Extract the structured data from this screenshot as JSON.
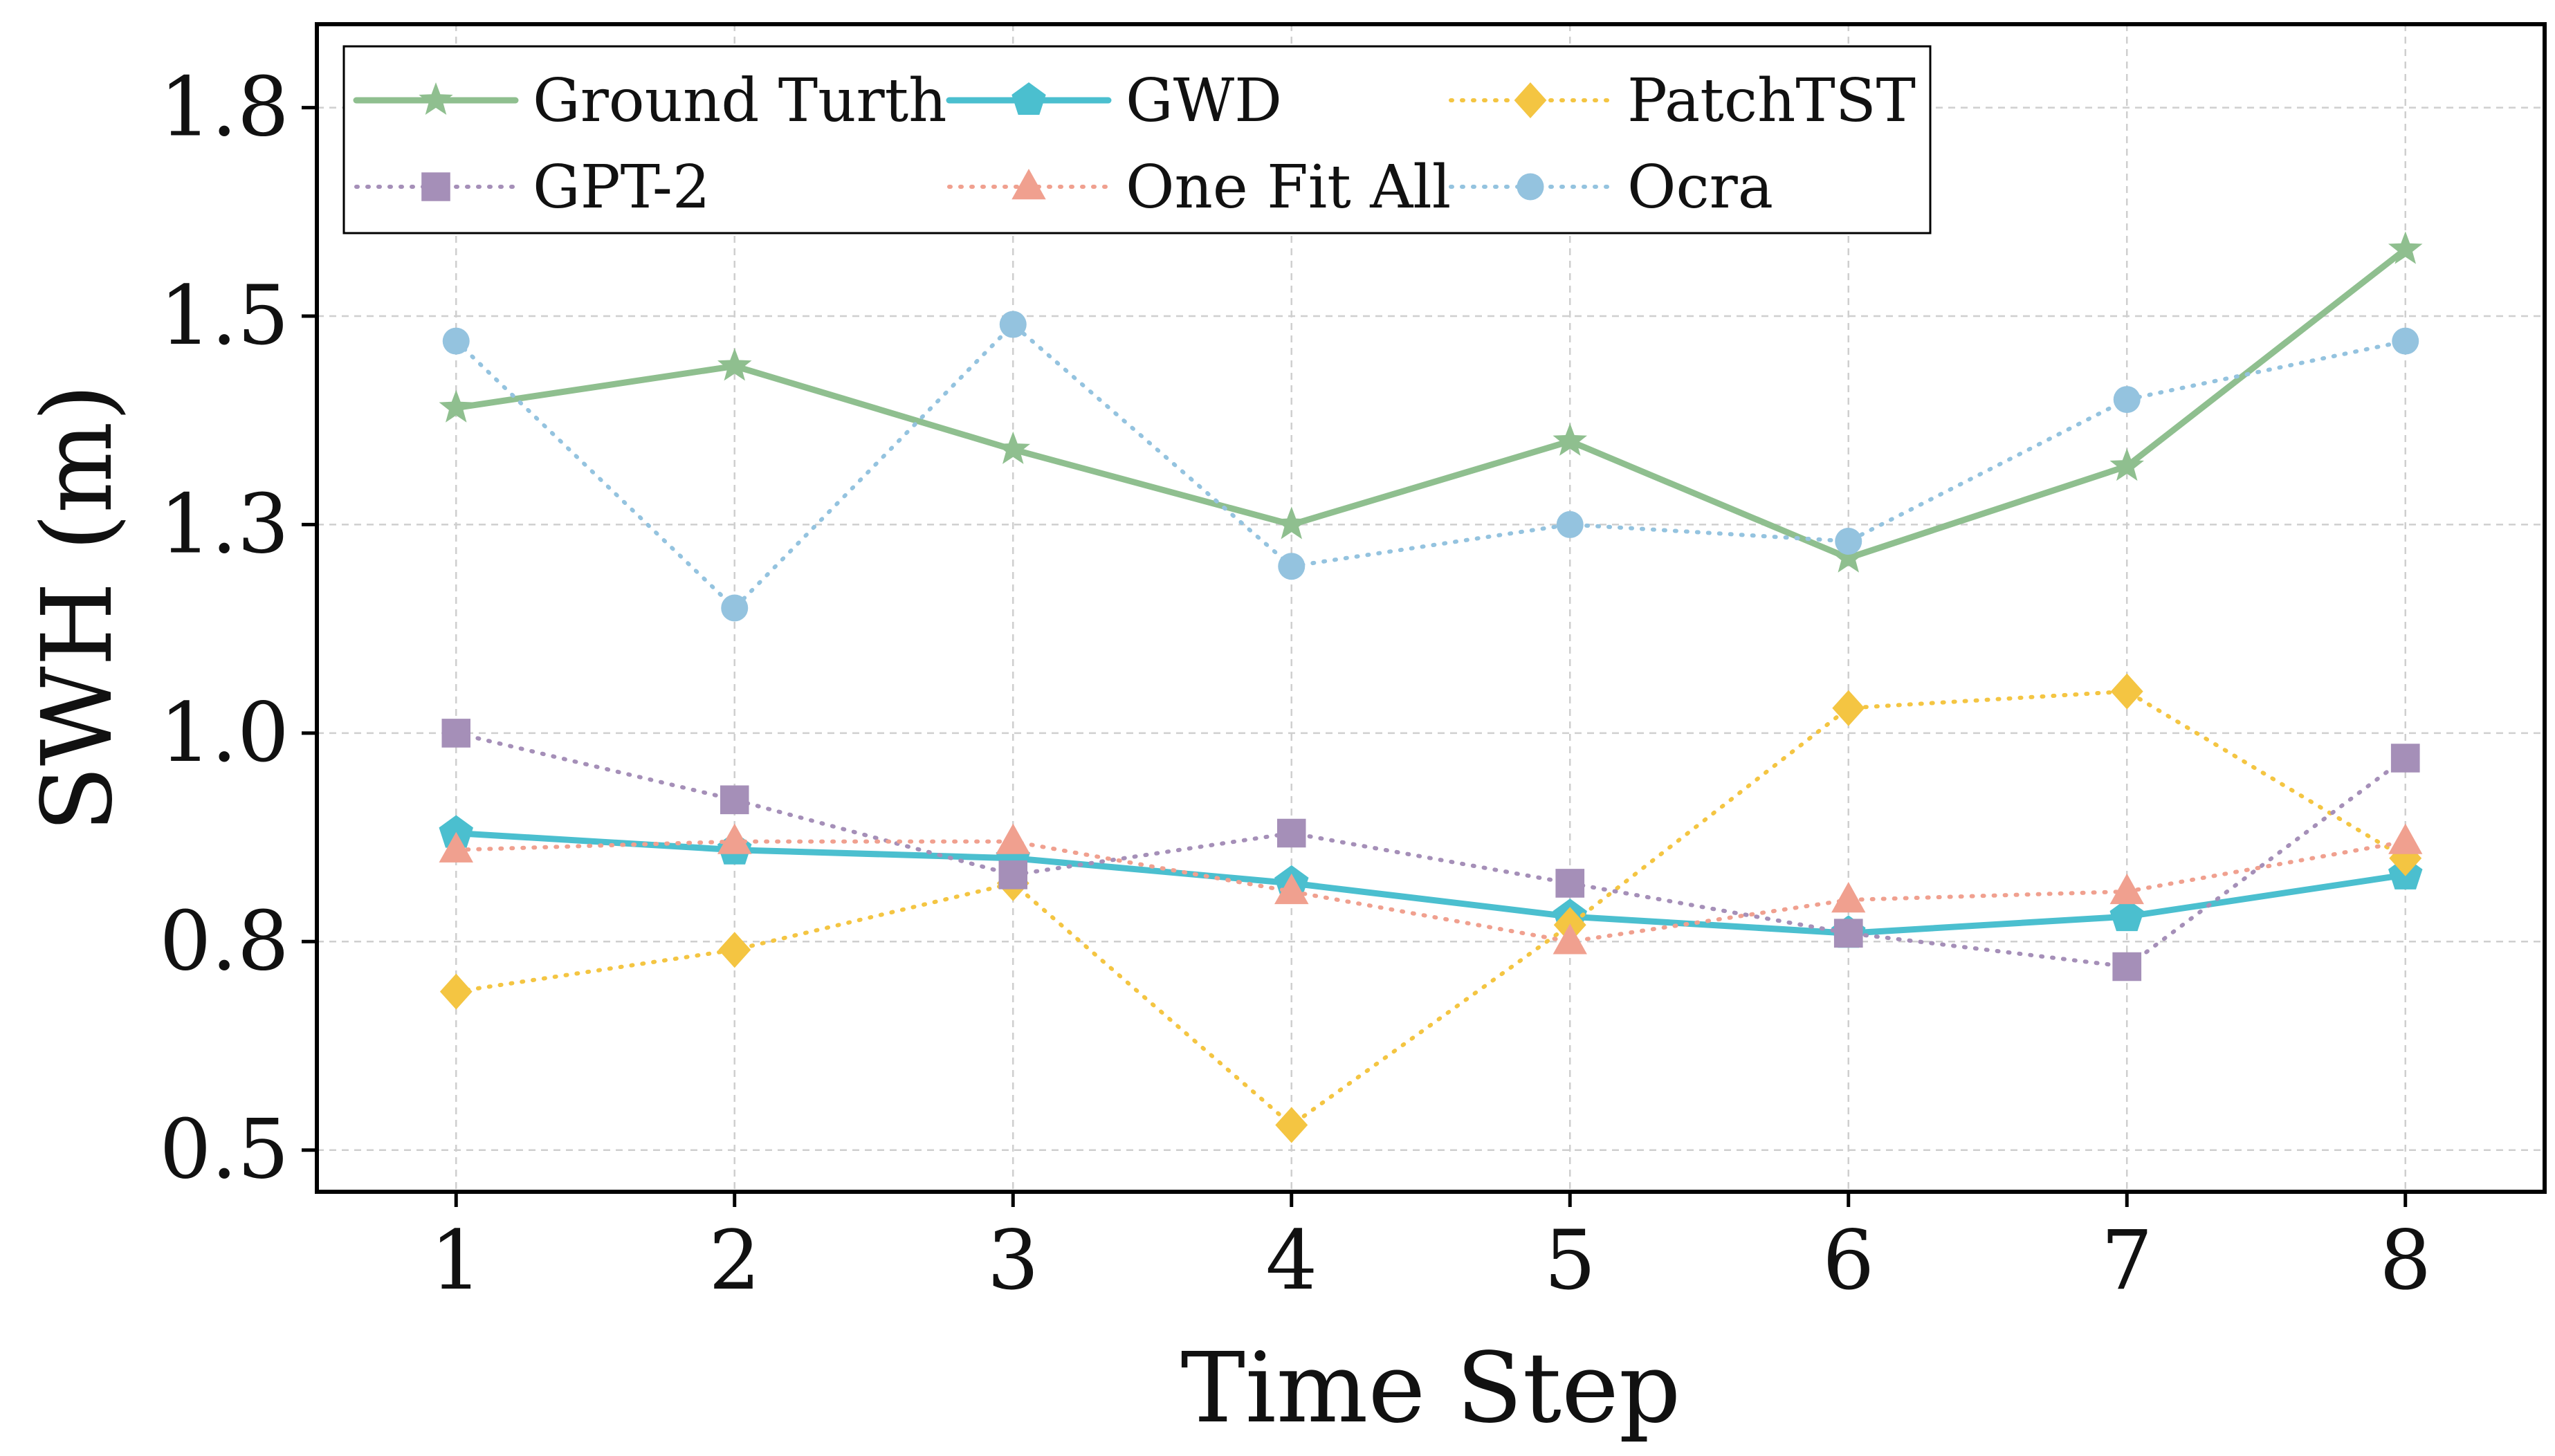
{
  "chart_data": {
    "type": "line",
    "xlabel": "Time Step",
    "ylabel": "SWH (m)",
    "x": [
      1,
      2,
      3,
      4,
      5,
      6,
      7,
      8
    ],
    "xlim": [
      0.5,
      8.5
    ],
    "ylim": [
      0.45,
      1.85
    ],
    "yticks": [
      0.5,
      0.75,
      1.0,
      1.25,
      1.5,
      1.75
    ],
    "ytick_labels": [
      "0.5",
      "0.8",
      "1.0",
      "1.3",
      "1.5",
      "1.8"
    ],
    "xtick_labels": [
      "1",
      "2",
      "3",
      "4",
      "5",
      "6",
      "7",
      "8"
    ],
    "grid": true,
    "legend_position": "top-left",
    "series": [
      {
        "name": "Ground Turth",
        "color": "#8fbf8f",
        "style": "solid",
        "marker": "star",
        "values": [
          1.39,
          1.44,
          1.34,
          1.25,
          1.35,
          1.21,
          1.32,
          1.58
        ]
      },
      {
        "name": "GWD",
        "color": "#4bbfcf",
        "style": "solid",
        "marker": "pentagon",
        "values": [
          0.88,
          0.86,
          0.85,
          0.82,
          0.78,
          0.76,
          0.78,
          0.83
        ]
      },
      {
        "name": "PatchTST",
        "color": "#f4c542",
        "style": "dotted",
        "marker": "diamond",
        "values": [
          0.69,
          0.74,
          0.82,
          0.53,
          0.77,
          1.03,
          1.05,
          0.85
        ]
      },
      {
        "name": "GPT-2",
        "color": "#a58fb8",
        "style": "dotted",
        "marker": "square",
        "values": [
          1.0,
          0.92,
          0.83,
          0.88,
          0.82,
          0.76,
          0.72,
          0.97
        ]
      },
      {
        "name": "One Fit All",
        "color": "#f0a08f",
        "style": "dotted",
        "marker": "triangle",
        "values": [
          0.86,
          0.87,
          0.87,
          0.81,
          0.75,
          0.8,
          0.81,
          0.87
        ]
      },
      {
        "name": "Ocra",
        "color": "#94c3df",
        "style": "dotted",
        "marker": "circle",
        "values": [
          1.47,
          1.15,
          1.49,
          1.2,
          1.25,
          1.23,
          1.4,
          1.47
        ]
      }
    ]
  }
}
